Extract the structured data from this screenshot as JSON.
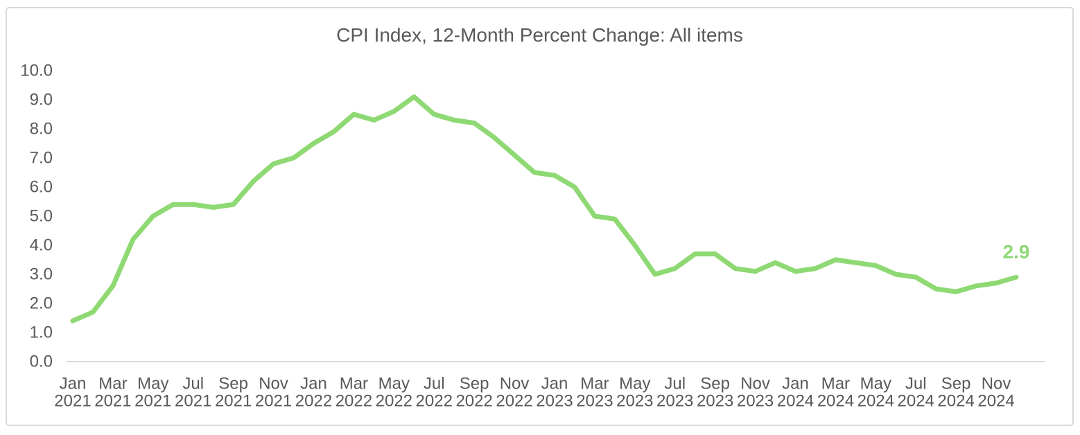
{
  "card": {
    "background": "#ffffff",
    "border_color": "#d9d9d9"
  },
  "chart_data": {
    "type": "line",
    "title": "CPI Index, 12-Month Percent Change: All items",
    "xlabel": "",
    "ylabel": "",
    "ylim": [
      0.0,
      10.0
    ],
    "y_tick_step": 1.0,
    "y_tick_labels": [
      "0.0",
      "1.0",
      "2.0",
      "3.0",
      "4.0",
      "5.0",
      "6.0",
      "7.0",
      "8.0",
      "9.0",
      "10.0"
    ],
    "grid": false,
    "legend": false,
    "axis_line_color": "#d9d9d9",
    "text_color": "#595959",
    "x": [
      "Jan 2021",
      "Feb 2021",
      "Mar 2021",
      "Apr 2021",
      "May 2021",
      "Jun 2021",
      "Jul 2021",
      "Aug 2021",
      "Sep 2021",
      "Oct 2021",
      "Nov 2021",
      "Dec 2021",
      "Jan 2022",
      "Feb 2022",
      "Mar 2022",
      "Apr 2022",
      "May 2022",
      "Jun 2022",
      "Jul 2022",
      "Aug 2022",
      "Sep 2022",
      "Oct 2022",
      "Nov 2022",
      "Dec 2022",
      "Jan 2023",
      "Feb 2023",
      "Mar 2023",
      "Apr 2023",
      "May 2023",
      "Jun 2023",
      "Jul 2023",
      "Aug 2023",
      "Sep 2023",
      "Oct 2023",
      "Nov 2023",
      "Dec 2023",
      "Jan 2024",
      "Feb 2024",
      "Mar 2024",
      "Apr 2024",
      "May 2024",
      "Jun 2024",
      "Jul 2024",
      "Aug 2024",
      "Sep 2024",
      "Oct 2024",
      "Nov 2024",
      "Dec 2024"
    ],
    "x_tick_labels": [
      "Jan 2021",
      "Mar 2021",
      "May 2021",
      "Jul 2021",
      "Sep 2021",
      "Nov 2021",
      "Jan 2022",
      "Mar 2022",
      "May 2022",
      "Jul 2022",
      "Sep 2022",
      "Nov 2022",
      "Jan 2023",
      "Mar 2023",
      "May 2023",
      "Jul 2023",
      "Sep 2023",
      "Nov 2023",
      "Jan 2024",
      "Mar 2024",
      "May 2024",
      "Jul 2024",
      "Sep 2024",
      "Nov 2024"
    ],
    "series": [
      {
        "name": "All items",
        "color": "#8ed973",
        "values": [
          1.4,
          1.7,
          2.6,
          4.2,
          5.0,
          5.4,
          5.4,
          5.3,
          5.4,
          6.2,
          6.8,
          7.0,
          7.5,
          7.9,
          8.5,
          8.3,
          8.6,
          9.1,
          8.5,
          8.3,
          8.2,
          7.7,
          7.1,
          6.5,
          6.4,
          6.0,
          5.0,
          4.9,
          4.0,
          3.0,
          3.2,
          3.7,
          3.7,
          3.2,
          3.1,
          3.4,
          3.1,
          3.2,
          3.5,
          3.4,
          3.3,
          3.0,
          2.9,
          2.5,
          2.4,
          2.6,
          2.7,
          2.9
        ]
      }
    ],
    "end_label": "2.9"
  }
}
